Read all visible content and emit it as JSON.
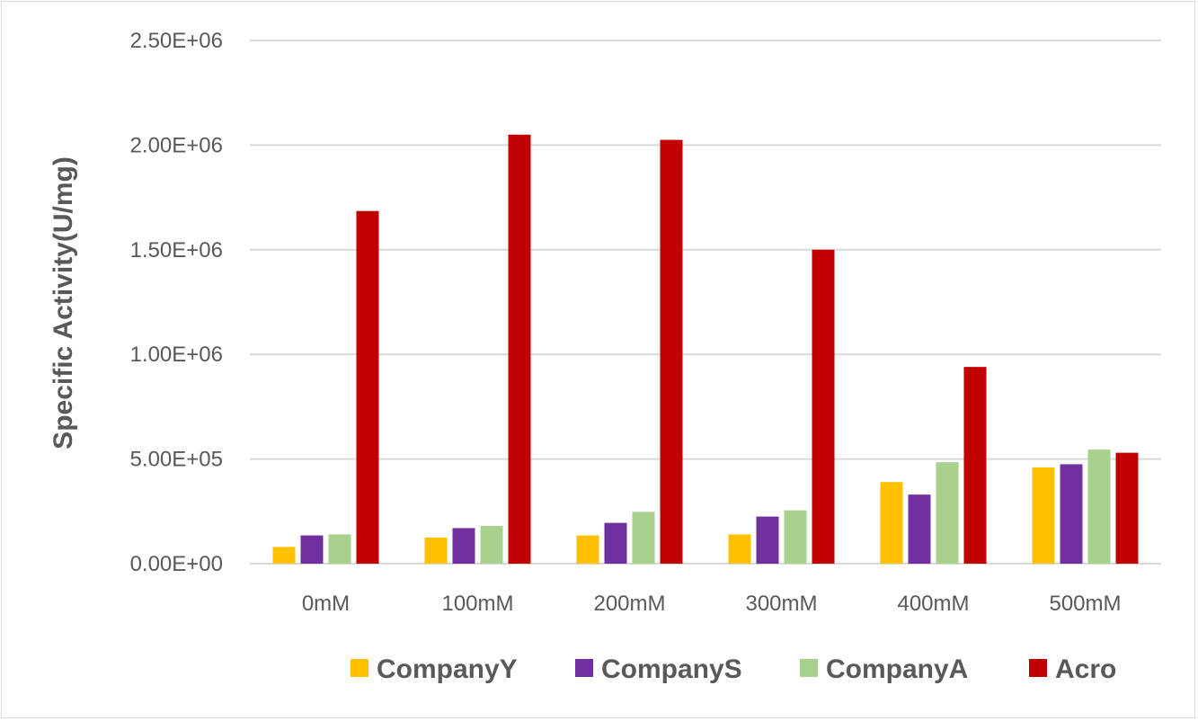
{
  "chart_data": {
    "type": "bar",
    "title": "",
    "xlabel": "",
    "ylabel": "Specific Activity(U/mg)",
    "ylim": [
      0,
      2500000
    ],
    "yticks": [
      0,
      500000,
      1000000,
      1500000,
      2000000,
      2500000
    ],
    "ytick_labels": [
      "0.00E+00",
      "5.00E+05",
      "1.00E+06",
      "1.50E+06",
      "2.00E+06",
      "2.50E+06"
    ],
    "categories": [
      "0mM",
      "100mM",
      "200mM",
      "300mM",
      "400mM",
      "500mM"
    ],
    "series": [
      {
        "name": "CompanyY",
        "color": "#FFC000",
        "values": [
          80000,
          125000,
          135000,
          140000,
          390000,
          460000
        ]
      },
      {
        "name": "CompanyS",
        "color": "#7030A0",
        "values": [
          135000,
          170000,
          195000,
          225000,
          330000,
          475000
        ]
      },
      {
        "name": "CompanyA",
        "color": "#A9D18E",
        "values": [
          140000,
          180000,
          248000,
          255000,
          485000,
          545000
        ]
      },
      {
        "name": "Acro",
        "color": "#C00000",
        "values": [
          1685000,
          2050000,
          2025000,
          1500000,
          940000,
          530000
        ]
      }
    ],
    "grid": true,
    "legend_position": "bottom"
  }
}
